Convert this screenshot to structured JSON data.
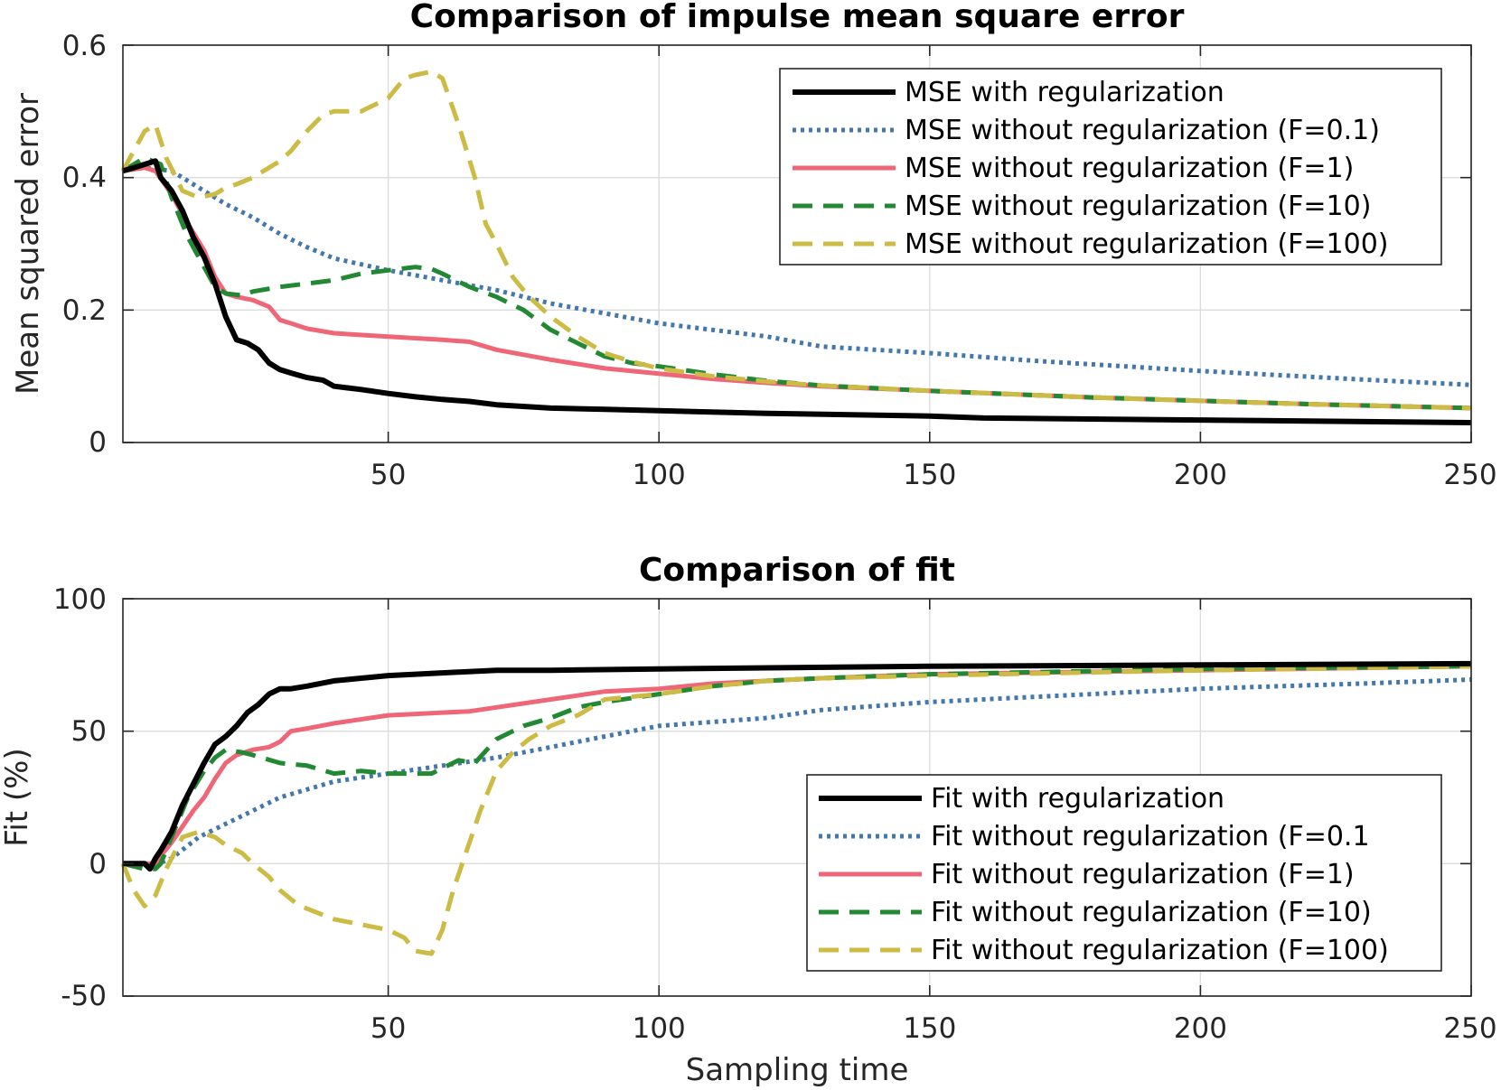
{
  "colors": {
    "reg": "#000000",
    "f01": "#4477aa",
    "f1": "#ee6677",
    "f10": "#228833",
    "f100": "#ccbb44"
  },
  "chart_data": [
    {
      "type": "line",
      "title": "Comparison of impulse mean square error",
      "xlabel": "",
      "ylabel": "Mean squared error",
      "xlim": [
        1,
        250
      ],
      "ylim": [
        0,
        0.6
      ],
      "xticks": [
        50,
        100,
        150,
        200,
        250
      ],
      "xtick_labels": [
        "50",
        "100",
        "150",
        "200",
        "250"
      ],
      "yticks": [
        0,
        0.2,
        0.4,
        0.6
      ],
      "ytick_labels": [
        "0",
        "0.2",
        "0.4",
        "0.6"
      ],
      "grid": true,
      "legend_position": "top-right",
      "series": [
        {
          "name": "MSE with regularization",
          "key": "reg",
          "style": "solid",
          "x": [
            1,
            3,
            5,
            7,
            8,
            10,
            12,
            14,
            16,
            18,
            20,
            22,
            24,
            26,
            28,
            30,
            32,
            35,
            38,
            40,
            45,
            50,
            55,
            60,
            65,
            70,
            80,
            90,
            100,
            120,
            150,
            160,
            200,
            250
          ],
          "y": [
            0.41,
            0.415,
            0.42,
            0.425,
            0.4,
            0.38,
            0.35,
            0.31,
            0.28,
            0.24,
            0.19,
            0.155,
            0.15,
            0.14,
            0.12,
            0.11,
            0.105,
            0.098,
            0.094,
            0.085,
            0.08,
            0.074,
            0.069,
            0.065,
            0.062,
            0.057,
            0.052,
            0.05,
            0.048,
            0.044,
            0.04,
            0.037,
            0.034,
            0.03
          ]
        },
        {
          "name": "MSE without regularization (F=0.1)",
          "key": "f01",
          "style": "dotted",
          "x": [
            1,
            5,
            10,
            15,
            20,
            25,
            30,
            35,
            40,
            50,
            60,
            70,
            80,
            90,
            100,
            120,
            130,
            150,
            170,
            200,
            230,
            250
          ],
          "y": [
            0.41,
            0.415,
            0.41,
            0.385,
            0.36,
            0.34,
            0.315,
            0.295,
            0.278,
            0.26,
            0.245,
            0.23,
            0.21,
            0.195,
            0.18,
            0.16,
            0.145,
            0.135,
            0.123,
            0.108,
            0.095,
            0.087
          ]
        },
        {
          "name": "MSE without regularization (F=1)",
          "key": "f1",
          "style": "solid",
          "x": [
            1,
            5,
            7,
            10,
            13,
            16,
            18,
            20,
            22,
            25,
            28,
            30,
            32,
            35,
            40,
            50,
            60,
            65,
            70,
            80,
            90,
            100,
            110,
            120,
            130,
            150,
            180,
            220,
            250
          ],
          "y": [
            0.41,
            0.415,
            0.41,
            0.375,
            0.33,
            0.29,
            0.25,
            0.225,
            0.22,
            0.215,
            0.205,
            0.185,
            0.18,
            0.172,
            0.165,
            0.16,
            0.155,
            0.152,
            0.14,
            0.125,
            0.112,
            0.104,
            0.096,
            0.09,
            0.085,
            0.078,
            0.068,
            0.058,
            0.052
          ]
        },
        {
          "name": "MSE without regularization (F=10)",
          "key": "f10",
          "style": "dashed",
          "x": [
            1,
            3,
            5,
            8,
            10,
            13,
            16,
            18,
            20,
            23,
            25,
            30,
            35,
            40,
            45,
            50,
            55,
            58,
            60,
            65,
            70,
            75,
            80,
            85,
            90,
            95,
            100,
            110,
            120,
            130,
            150,
            180,
            220,
            250
          ],
          "y": [
            0.41,
            0.42,
            0.43,
            0.42,
            0.37,
            0.31,
            0.265,
            0.235,
            0.225,
            0.222,
            0.228,
            0.235,
            0.24,
            0.245,
            0.255,
            0.26,
            0.265,
            0.262,
            0.255,
            0.235,
            0.22,
            0.2,
            0.17,
            0.15,
            0.13,
            0.12,
            0.115,
            0.103,
            0.093,
            0.086,
            0.078,
            0.068,
            0.058,
            0.052
          ]
        },
        {
          "name": "MSE without regularization (F=100)",
          "key": "f100",
          "style": "dashed",
          "x": [
            1,
            3,
            5,
            7,
            9,
            12,
            15,
            18,
            20,
            22,
            25,
            27,
            30,
            32,
            35,
            38,
            40,
            45,
            50,
            53,
            55,
            58,
            60,
            63,
            66,
            68,
            70,
            73,
            76,
            80,
            85,
            90,
            95,
            100,
            110,
            120,
            130,
            150,
            180,
            220,
            250
          ],
          "y": [
            0.41,
            0.44,
            0.47,
            0.48,
            0.43,
            0.38,
            0.37,
            0.375,
            0.385,
            0.39,
            0.4,
            0.41,
            0.425,
            0.44,
            0.47,
            0.495,
            0.5,
            0.5,
            0.52,
            0.55,
            0.555,
            0.56,
            0.55,
            0.48,
            0.4,
            0.33,
            0.3,
            0.25,
            0.22,
            0.19,
            0.16,
            0.135,
            0.122,
            0.112,
            0.1,
            0.092,
            0.086,
            0.078,
            0.068,
            0.058,
            0.052
          ]
        }
      ]
    },
    {
      "type": "line",
      "title": "Comparison of fit",
      "xlabel": "Sampling time",
      "ylabel": "Fit (%)",
      "xlim": [
        1,
        250
      ],
      "ylim": [
        -50,
        100
      ],
      "xticks": [
        50,
        100,
        150,
        200,
        250
      ],
      "xtick_labels": [
        "50",
        "100",
        "150",
        "200",
        "250"
      ],
      "yticks": [
        -50,
        0,
        50,
        100
      ],
      "ytick_labels": [
        "-50",
        "0",
        "50",
        "100"
      ],
      "grid": true,
      "legend_position": "bottom-right",
      "series": [
        {
          "name": "Fit with regularization",
          "key": "reg",
          "style": "solid",
          "x": [
            1,
            3,
            5,
            6,
            7,
            8,
            10,
            12,
            14,
            16,
            18,
            20,
            22,
            24,
            26,
            28,
            30,
            32,
            35,
            40,
            45,
            50,
            60,
            70,
            80,
            100,
            150,
            200,
            250
          ],
          "y": [
            0,
            0,
            0,
            -2,
            2,
            5,
            12,
            22,
            30,
            38,
            45,
            48,
            52,
            57,
            60,
            64,
            66,
            66,
            67,
            69,
            70,
            71,
            72,
            73,
            73,
            73.5,
            74.5,
            75,
            75.5
          ]
        },
        {
          "name": "Fit without regularization (F=0.1",
          "key": "f01",
          "style": "dotted",
          "x": [
            1,
            5,
            10,
            15,
            20,
            25,
            30,
            35,
            40,
            50,
            60,
            70,
            80,
            90,
            100,
            120,
            130,
            150,
            170,
            200,
            230,
            250
          ],
          "y": [
            0,
            -2,
            2,
            10,
            15,
            20,
            25,
            28,
            31,
            34,
            37,
            40,
            44,
            48,
            52,
            55,
            58,
            61,
            63,
            66,
            68,
            69.5
          ]
        },
        {
          "name": "Fit without regularization (F=1)",
          "key": "f1",
          "style": "solid",
          "x": [
            1,
            3,
            5,
            7,
            8,
            10,
            12,
            14,
            16,
            18,
            20,
            22,
            25,
            28,
            30,
            32,
            35,
            40,
            50,
            60,
            65,
            70,
            80,
            90,
            100,
            110,
            120,
            130,
            150,
            200,
            250
          ],
          "y": [
            0,
            0,
            0,
            0,
            3,
            8,
            14,
            20,
            25,
            32,
            38,
            41,
            43,
            44,
            46,
            50,
            51,
            53,
            56,
            57,
            57.5,
            59,
            62,
            65,
            66,
            68,
            69,
            70,
            71.5,
            73,
            74.5
          ]
        },
        {
          "name": "Fit without regularization (F=10)",
          "key": "f10",
          "style": "dashed",
          "x": [
            1,
            3,
            5,
            7,
            8,
            10,
            13,
            16,
            18,
            20,
            23,
            25,
            30,
            35,
            40,
            45,
            50,
            55,
            58,
            60,
            63,
            66,
            70,
            75,
            80,
            85,
            90,
            100,
            110,
            120,
            130,
            150,
            200,
            250
          ],
          "y": [
            0,
            -1,
            -2,
            -2,
            0,
            10,
            25,
            35,
            40,
            43,
            42,
            41,
            38,
            37,
            34,
            35,
            34,
            34,
            34,
            36,
            39,
            38,
            47,
            52,
            55,
            59,
            61,
            64,
            67,
            69,
            70,
            71.5,
            73.5,
            74.5
          ]
        },
        {
          "name": "Fit without regularization (F=100)",
          "key": "f100",
          "style": "dashed",
          "x": [
            1,
            3,
            5,
            7,
            9,
            12,
            15,
            18,
            20,
            23,
            25,
            28,
            30,
            33,
            35,
            40,
            45,
            50,
            53,
            55,
            58,
            60,
            62,
            65,
            67,
            70,
            73,
            76,
            80,
            85,
            90,
            95,
            100,
            110,
            120,
            130,
            150,
            200,
            250
          ],
          "y": [
            0,
            -10,
            -16,
            -12,
            -2,
            10,
            12,
            10,
            7,
            4,
            0,
            -5,
            -10,
            -15,
            -17,
            -21,
            -23,
            -25,
            -28,
            -33,
            -34,
            -25,
            -10,
            8,
            20,
            35,
            42,
            47,
            52,
            56,
            62,
            63,
            64,
            67,
            69,
            70,
            71,
            73,
            74.5
          ]
        }
      ]
    }
  ]
}
